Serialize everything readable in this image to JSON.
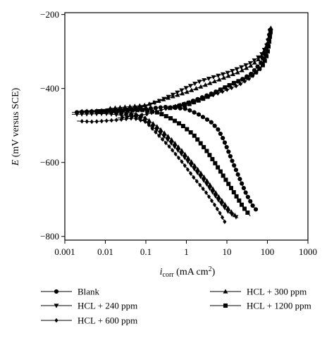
{
  "chart_data": {
    "type": "line",
    "xscale": "log",
    "xlim": [
      0.001,
      1000
    ],
    "ylim": [
      -810,
      -195
    ],
    "x_ticks": [
      0.001,
      0.01,
      0.1,
      1,
      10,
      100,
      1000
    ],
    "x_tick_labels": [
      "0.001",
      "0.01",
      "0.1",
      "1",
      "10",
      "100",
      "1000"
    ],
    "y_ticks": [
      -200,
      -400,
      -600,
      -800
    ],
    "y_tick_labels": [
      "−200",
      "−400",
      "−600",
      "−800"
    ],
    "ylabel_italic": "E",
    "ylabel_rest": " (mV versus SCE)",
    "xlabel_main": "i",
    "xlabel_sub": "corr",
    "xlabel_rest": " (mA cm",
    "xlabel_sup": "2",
    "xlabel_end": ")",
    "grid": false,
    "legend_position": "bottom",
    "series": [
      {
        "name": "Blank",
        "marker": "circle",
        "cathodic": [
          [
            0.0015,
            -465
          ],
          [
            0.01,
            -460
          ],
          [
            0.1,
            -455
          ],
          [
            0.3,
            -450
          ],
          [
            1,
            -455
          ],
          [
            2,
            -470
          ],
          [
            4,
            -490
          ],
          [
            6,
            -510
          ],
          [
            8,
            -535
          ],
          [
            10,
            -560
          ],
          [
            14,
            -600
          ],
          [
            20,
            -640
          ],
          [
            30,
            -685
          ],
          [
            45,
            -720
          ],
          [
            55,
            -730
          ]
        ],
        "anodic": [
          [
            0.5,
            -450
          ],
          [
            1,
            -440
          ],
          [
            2,
            -428
          ],
          [
            5,
            -410
          ],
          [
            10,
            -395
          ],
          [
            20,
            -380
          ],
          [
            40,
            -360
          ],
          [
            70,
            -330
          ],
          [
            90,
            -300
          ],
          [
            105,
            -270
          ],
          [
            115,
            -245
          ],
          [
            120,
            -232
          ]
        ]
      },
      {
        "name": "HCL + 240 ppm",
        "marker": "triangle-down",
        "cathodic": [
          [
            0.0015,
            -470
          ],
          [
            0.01,
            -468
          ],
          [
            0.05,
            -475
          ],
          [
            0.1,
            -490
          ],
          [
            0.2,
            -515
          ],
          [
            0.4,
            -545
          ],
          [
            0.8,
            -580
          ],
          [
            1.5,
            -615
          ],
          [
            3,
            -655
          ],
          [
            6,
            -700
          ],
          [
            10,
            -730
          ],
          [
            15,
            -745
          ],
          [
            19,
            -750
          ]
        ],
        "anodic": [
          [
            0.002,
            -465
          ],
          [
            0.01,
            -462
          ],
          [
            0.05,
            -455
          ],
          [
            0.1,
            -448
          ],
          [
            0.2,
            -435
          ],
          [
            0.5,
            -415
          ],
          [
            1,
            -398
          ],
          [
            2,
            -382
          ],
          [
            5,
            -368
          ],
          [
            10,
            -358
          ],
          [
            20,
            -345
          ],
          [
            40,
            -330
          ],
          [
            70,
            -310
          ],
          [
            95,
            -285
          ],
          [
            110,
            -260
          ],
          [
            118,
            -240
          ]
        ]
      },
      {
        "name": "HCL + 300 ppm",
        "marker": "triangle-up",
        "cathodic": [
          [
            0.002,
            -462
          ],
          [
            0.01,
            -460
          ],
          [
            0.05,
            -467
          ],
          [
            0.1,
            -480
          ],
          [
            0.2,
            -505
          ],
          [
            0.4,
            -535
          ],
          [
            0.8,
            -570
          ],
          [
            1.5,
            -605
          ],
          [
            3,
            -645
          ],
          [
            6,
            -690
          ],
          [
            10,
            -720
          ],
          [
            14,
            -738
          ],
          [
            18,
            -748
          ]
        ],
        "anodic": [
          [
            0.01,
            -455
          ],
          [
            0.1,
            -445
          ],
          [
            0.3,
            -428
          ],
          [
            1,
            -410
          ],
          [
            3,
            -390
          ],
          [
            8,
            -372
          ],
          [
            20,
            -355
          ],
          [
            40,
            -338
          ],
          [
            70,
            -315
          ],
          [
            100,
            -280
          ],
          [
            115,
            -255
          ],
          [
            122,
            -236
          ]
        ]
      },
      {
        "name": "HCL + 600 ppm",
        "marker": "diamond",
        "cathodic": [
          [
            0.002,
            -488
          ],
          [
            0.005,
            -490
          ],
          [
            0.02,
            -485
          ],
          [
            0.05,
            -480
          ],
          [
            0.1,
            -490
          ],
          [
            0.2,
            -525
          ],
          [
            0.4,
            -560
          ],
          [
            0.8,
            -600
          ],
          [
            1.5,
            -640
          ],
          [
            3,
            -680
          ],
          [
            5,
            -715
          ],
          [
            7,
            -740
          ],
          [
            9,
            -762
          ]
        ],
        "anodic": [
          [
            0.02,
            -480
          ],
          [
            0.1,
            -470
          ],
          [
            0.3,
            -455
          ],
          [
            1,
            -440
          ],
          [
            3,
            -425
          ],
          [
            8,
            -408
          ],
          [
            20,
            -390
          ],
          [
            40,
            -370
          ],
          [
            70,
            -345
          ],
          [
            95,
            -310
          ],
          [
            110,
            -275
          ],
          [
            118,
            -250
          ]
        ]
      },
      {
        "name": "HCL + 1200 ppm",
        "marker": "square",
        "cathodic": [
          [
            0.005,
            -462
          ],
          [
            0.02,
            -460
          ],
          [
            0.08,
            -458
          ],
          [
            0.2,
            -465
          ],
          [
            0.4,
            -480
          ],
          [
            0.8,
            -500
          ],
          [
            1.5,
            -525
          ],
          [
            3,
            -565
          ],
          [
            5,
            -600
          ],
          [
            8,
            -635
          ],
          [
            12,
            -665
          ],
          [
            18,
            -695
          ],
          [
            25,
            -720
          ],
          [
            32,
            -735
          ],
          [
            38,
            -745
          ]
        ],
        "anodic": [
          [
            0.3,
            -455
          ],
          [
            1,
            -445
          ],
          [
            3,
            -425
          ],
          [
            8,
            -400
          ],
          [
            15,
            -385
          ],
          [
            30,
            -372
          ],
          [
            50,
            -358
          ],
          [
            80,
            -335
          ],
          [
            100,
            -305
          ],
          [
            112,
            -270
          ],
          [
            120,
            -245
          ]
        ]
      }
    ]
  }
}
